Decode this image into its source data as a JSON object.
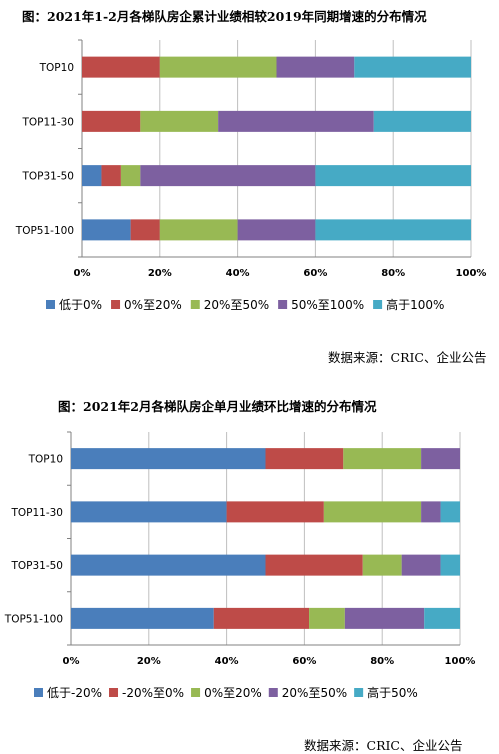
{
  "colors": {
    "blue": "#4a7ebb",
    "red": "#be4b48",
    "green": "#98b954",
    "purple": "#7d60a0",
    "cyan": "#46aac5"
  },
  "chart_data": [
    {
      "type": "bar",
      "orientation": "horizontal",
      "stacked": true,
      "title": "图：2021年1-2月各梯队房企累计业绩相较2019年同期增速的分布情况",
      "categories": [
        "TOP10",
        "TOP11-30",
        "TOP31-50",
        "TOP51-100"
      ],
      "xlim": [
        0,
        100
      ],
      "x_ticks": [
        "0%",
        "20%",
        "40%",
        "60%",
        "80%",
        "100%"
      ],
      "grid": true,
      "legend_position": "bottom",
      "series": [
        {
          "name": "低于0%",
          "color": "#4a7ebb",
          "values": [
            0,
            0,
            5,
            12.5
          ]
        },
        {
          "name": "0%至20%",
          "color": "#be4b48",
          "values": [
            20,
            15,
            5,
            7.5
          ]
        },
        {
          "name": "20%至50%",
          "color": "#98b954",
          "values": [
            30,
            20,
            5,
            20
          ]
        },
        {
          "name": "50%至100%",
          "color": "#7d60a0",
          "values": [
            20,
            40,
            45,
            20
          ]
        },
        {
          "name": "高于100%",
          "color": "#46aac5",
          "values": [
            30,
            25,
            40,
            40
          ]
        }
      ],
      "source": "数据来源：CRIC、企业公告"
    },
    {
      "type": "bar",
      "orientation": "horizontal",
      "stacked": true,
      "title": "图：2021年2月各梯队房企单月业绩环比增速的分布情况",
      "categories": [
        "TOP10",
        "TOP11-30",
        "TOP31-50",
        "TOP51-100"
      ],
      "xlim": [
        0,
        100
      ],
      "x_ticks": [
        "0%",
        "20%",
        "40%",
        "60%",
        "80%",
        "100%"
      ],
      "grid": true,
      "legend_position": "bottom",
      "series": [
        {
          "name": "低于-20%",
          "color": "#4a7ebb",
          "values": [
            50,
            40,
            50,
            36.7
          ]
        },
        {
          "name": "-20%至0%",
          "color": "#be4b48",
          "values": [
            20,
            25,
            25,
            24.5
          ]
        },
        {
          "name": "0%至20%",
          "color": "#98b954",
          "values": [
            20,
            25,
            10,
            9.2
          ]
        },
        {
          "name": "20%至50%",
          "color": "#7d60a0",
          "values": [
            10,
            5,
            10,
            20.4
          ]
        },
        {
          "name": "高于50%",
          "color": "#46aac5",
          "values": [
            0,
            5,
            5,
            9.2
          ]
        }
      ],
      "source": "数据来源：CRIC、企业公告"
    }
  ]
}
